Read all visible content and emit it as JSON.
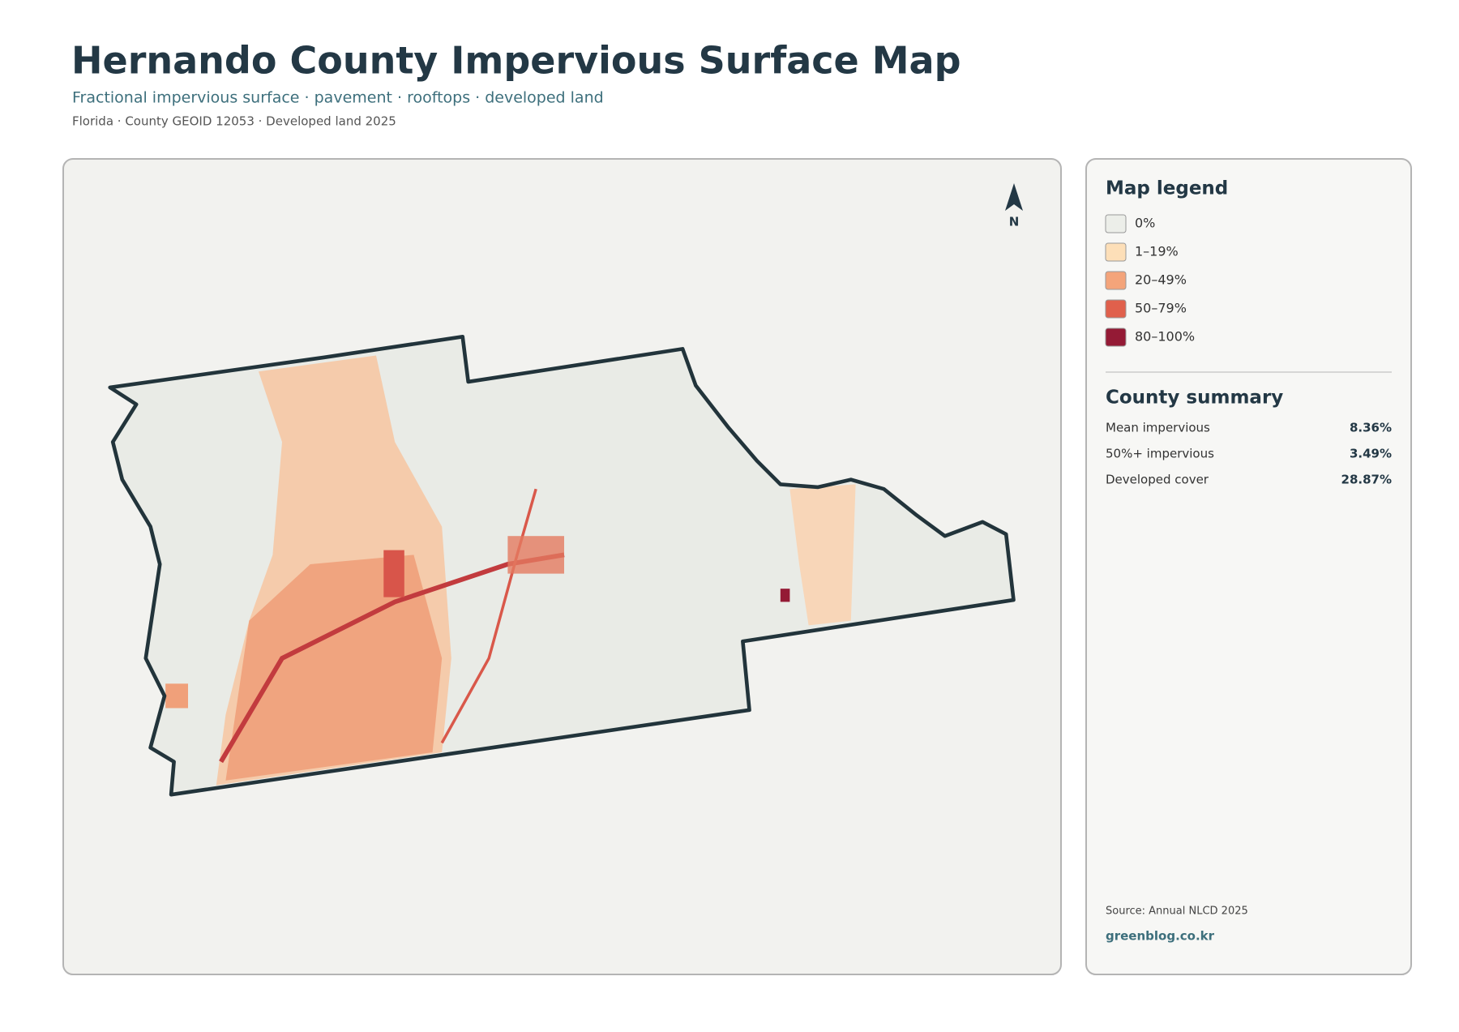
{
  "header": {
    "title": "Hernando County Impervious Surface Map",
    "subtitle": "Fractional impervious surface · pavement · rooftops · developed land",
    "meta": "Florida · County GEOID 12053 · Developed land 2025"
  },
  "north": "N",
  "legend": {
    "title": "Map legend",
    "items": [
      {
        "label": "0%",
        "color": "#eceee9"
      },
      {
        "label": "1–19%",
        "color": "#fddfb8"
      },
      {
        "label": "20–49%",
        "color": "#f4a47a"
      },
      {
        "label": "50–79%",
        "color": "#e0604c"
      },
      {
        "label": "80–100%",
        "color": "#941a35"
      }
    ]
  },
  "summary": {
    "title": "County summary",
    "rows": [
      {
        "label": "Mean impervious",
        "value": "8.36%"
      },
      {
        "label": "50%+ impervious",
        "value": "3.49%"
      },
      {
        "label": "Developed cover",
        "value": "28.87%"
      }
    ]
  },
  "source": "Source: Annual NLCD 2025",
  "site": "greenblog.co.kr"
}
